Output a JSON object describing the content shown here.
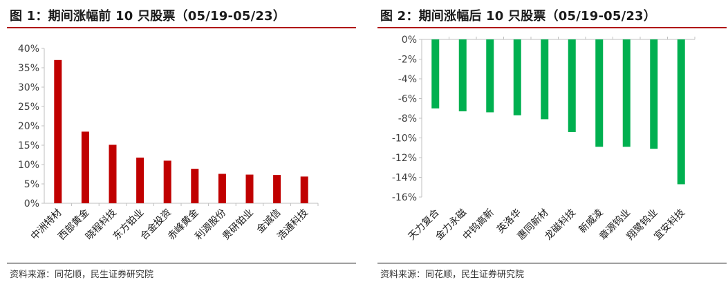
{
  "left": {
    "title": "图 1：期间涨幅前 10 只股票（05/19-05/23）",
    "source": "资料来源：同花顺，民生证券研究院"
  },
  "right": {
    "title": "图 2：期间涨幅后 10 只股票（05/19-05/23）",
    "source": "资料来源：同花顺，民生证券研究院"
  },
  "chart_data": [
    {
      "type": "bar",
      "title": "图 1：期间涨幅前 10 只股票（05/19-05/23）",
      "categories": [
        "中洲特材",
        "西部黄金",
        "晓程科技",
        "东方铂业",
        "合金投资",
        "赤峰黄金",
        "利源股份",
        "贵研铂业",
        "金诚信",
        "浩通科技"
      ],
      "values": [
        37.0,
        18.5,
        15.1,
        11.8,
        11.0,
        8.9,
        7.6,
        7.4,
        7.3,
        6.9
      ],
      "ylim": [
        0,
        40
      ],
      "yticks": [
        0,
        5,
        10,
        15,
        20,
        25,
        30,
        35,
        40
      ],
      "tick_suffix": "%",
      "color": "#C00000",
      "grid": false,
      "legend": "none"
    },
    {
      "type": "bar",
      "title": "图 2：期间涨幅后 10 只股票（05/19-05/23）",
      "categories": [
        "天力复合",
        "金力永磁",
        "中钨高新",
        "英洛华",
        "惠同新材",
        "龙磁科技",
        "新威凌",
        "章源钨业",
        "翔鹭钨业",
        "宜安科技"
      ],
      "values": [
        -7.0,
        -7.3,
        -7.4,
        -7.7,
        -8.1,
        -9.4,
        -10.9,
        -10.9,
        -11.1,
        -14.7
      ],
      "ylim": [
        -16,
        0
      ],
      "yticks": [
        0,
        -2,
        -4,
        -6,
        -8,
        -10,
        -12,
        -14,
        -16
      ],
      "tick_suffix": "%",
      "color": "#00B050",
      "grid": false,
      "legend": "none"
    }
  ]
}
